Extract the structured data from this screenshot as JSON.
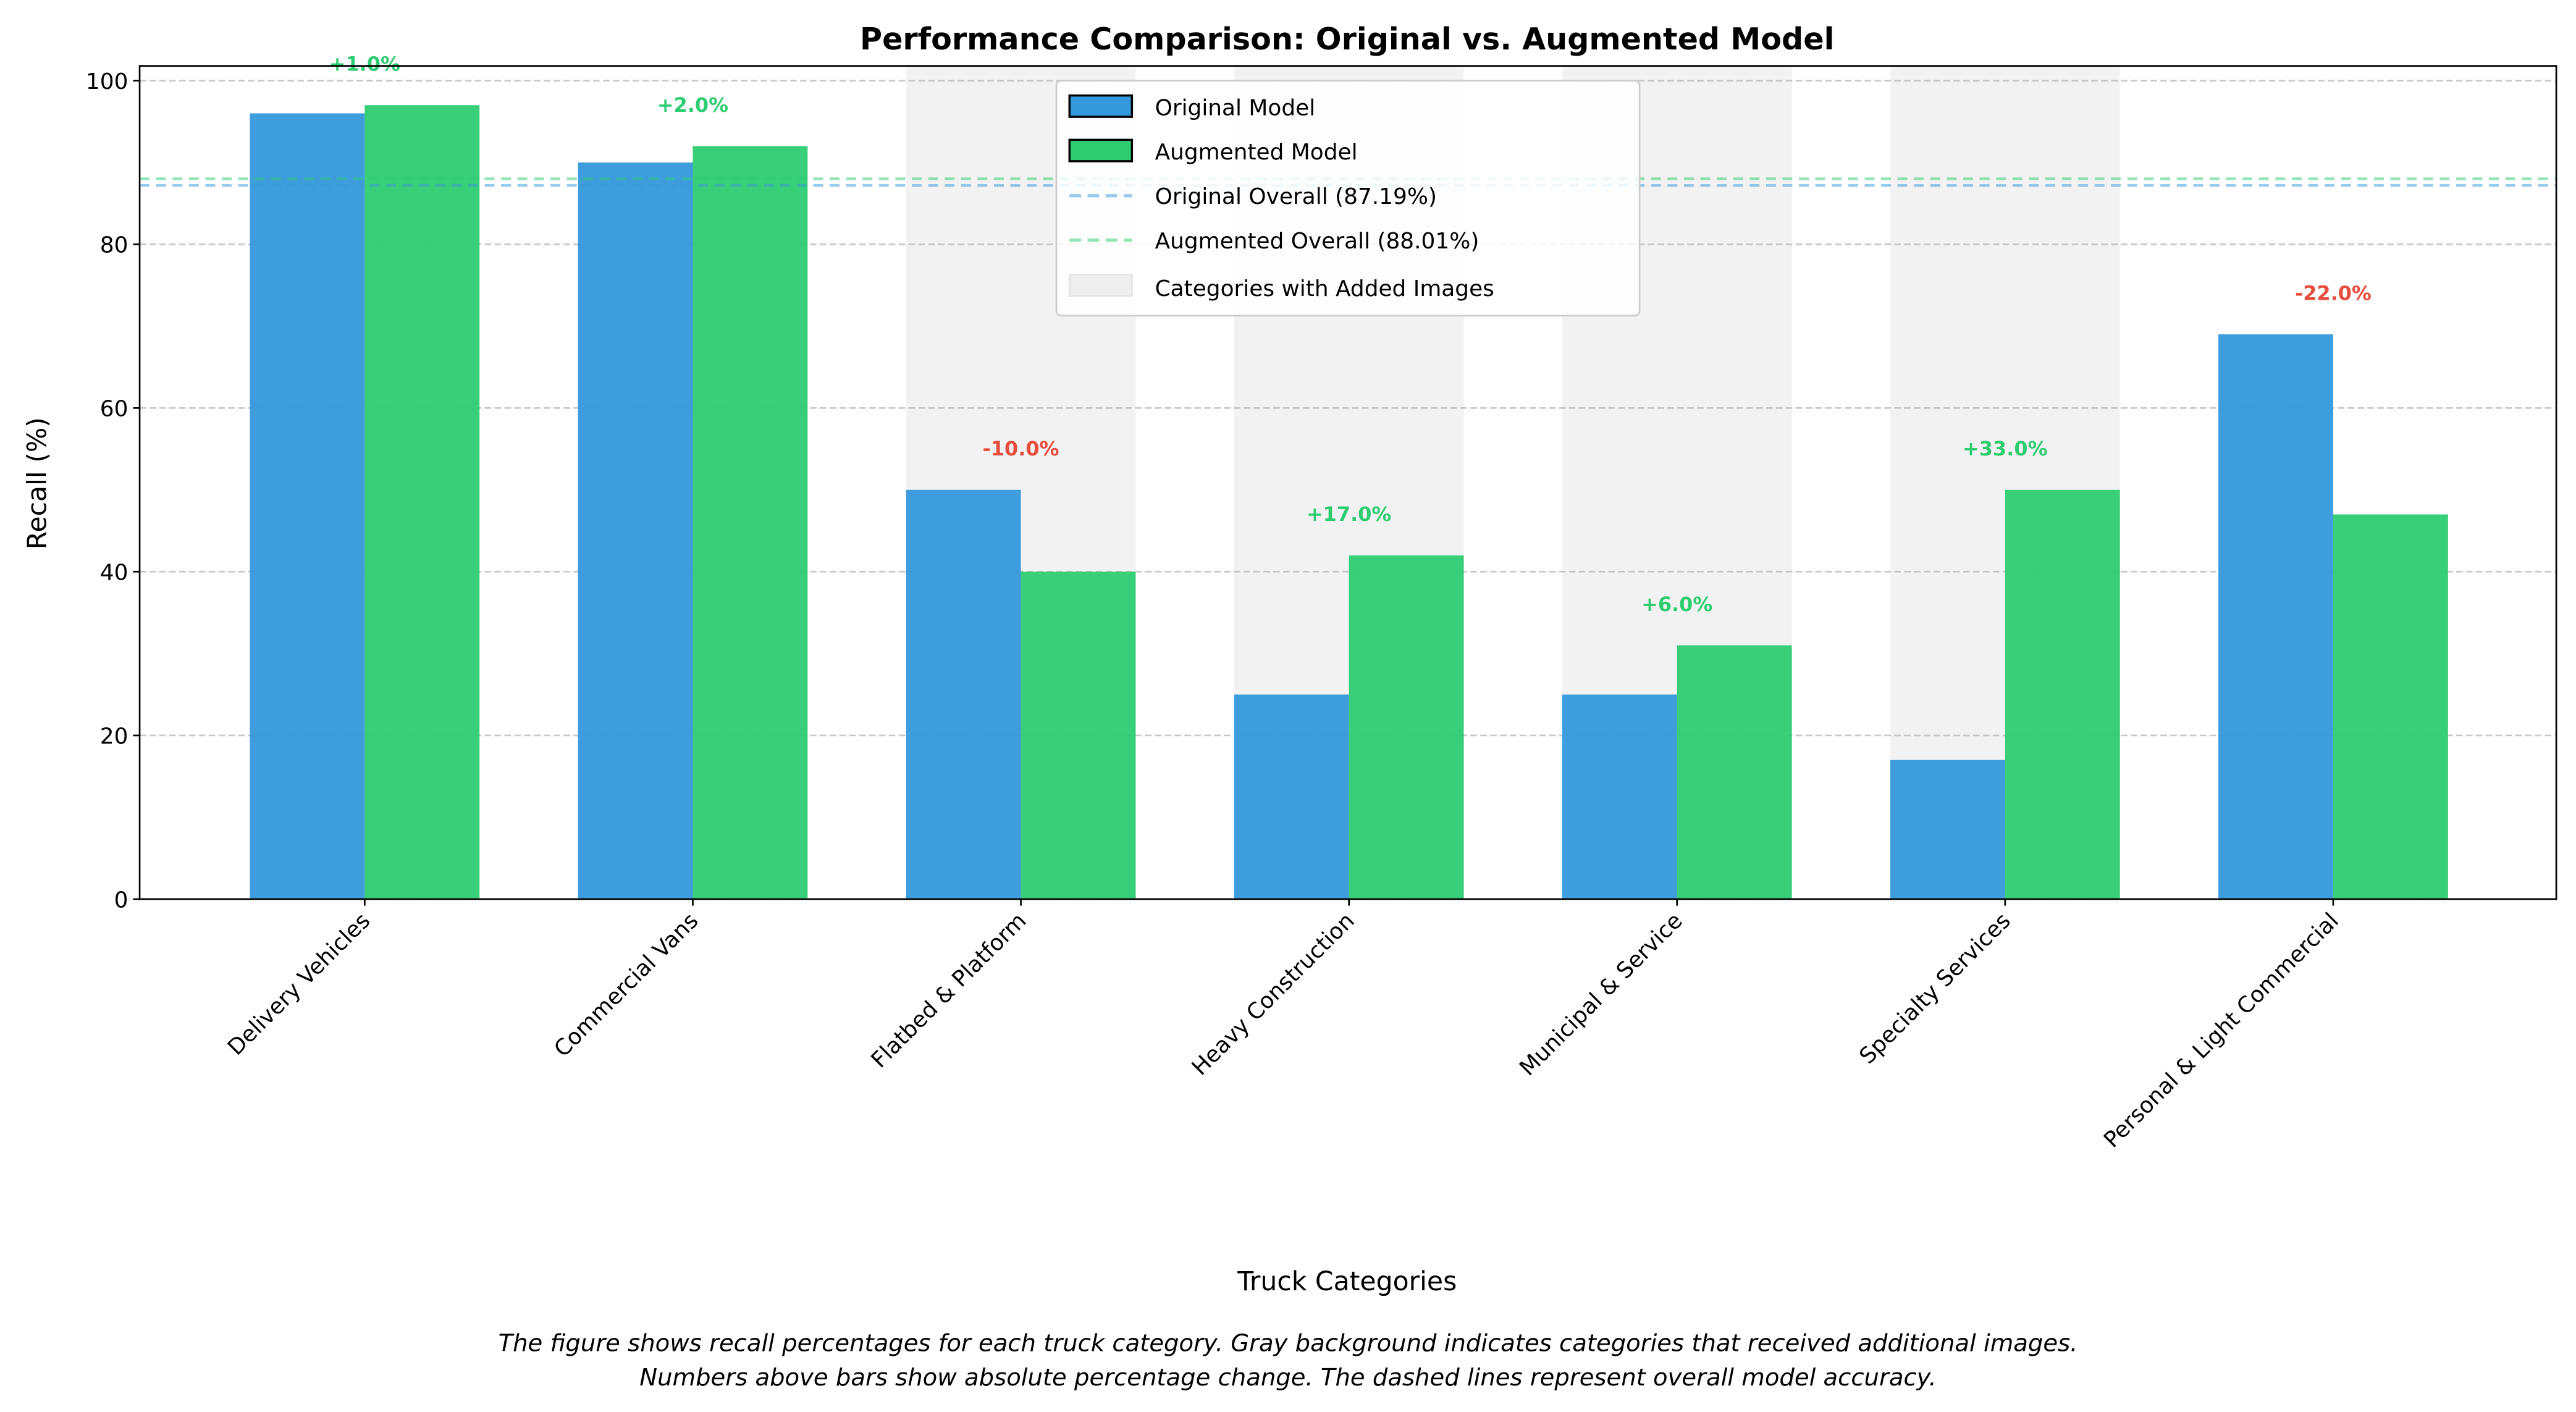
{
  "chart_data": {
    "type": "bar",
    "title": "Performance Comparison: Original vs. Augmented Model",
    "xlabel": "Truck Categories",
    "ylabel": "Recall (%)",
    "ylim": [
      0,
      101.8
    ],
    "yticks": [
      "0",
      "20",
      "40",
      "60",
      "80",
      "100"
    ],
    "grid": "horizontal dashed",
    "legend_position": "top-center",
    "categories": [
      "Delivery Vehicles",
      "Commercial Vans",
      "Flatbed & Platform",
      "Heavy Construction",
      "Municipal & Service",
      "Specialty Services",
      "Personal & Light Commercial"
    ],
    "series": [
      {
        "name": "Original Model",
        "color": "#3498db",
        "values": [
          96,
          90,
          50,
          25,
          25,
          17,
          69
        ]
      },
      {
        "name": "Augmented Model",
        "color": "#2ecc71",
        "values": [
          97,
          92,
          40,
          42,
          31,
          50,
          47
        ]
      }
    ],
    "changes": [
      "+1.0%",
      "+2.0%",
      "-10.0%",
      "+17.0%",
      "+6.0%",
      "+33.0%",
      "-22.0%"
    ],
    "positive_color": "#2ecc71",
    "negative_color": "#e74c3c",
    "reference_lines": [
      {
        "name": "Original Overall (87.19%)",
        "value": 87.19,
        "color": "#3498db"
      },
      {
        "name": "Augmented Overall (88.01%)",
        "value": 88.01,
        "color": "#2ecc71"
      }
    ],
    "highlighted_categories": [
      2,
      3,
      4,
      5
    ],
    "highlight_legend": "Categories with Added Images",
    "caption": [
      "The figure shows recall percentages for each truck category. Gray background indicates categories that received additional images.",
      "Numbers above bars show absolute percentage change. The dashed lines represent overall model accuracy."
    ]
  }
}
